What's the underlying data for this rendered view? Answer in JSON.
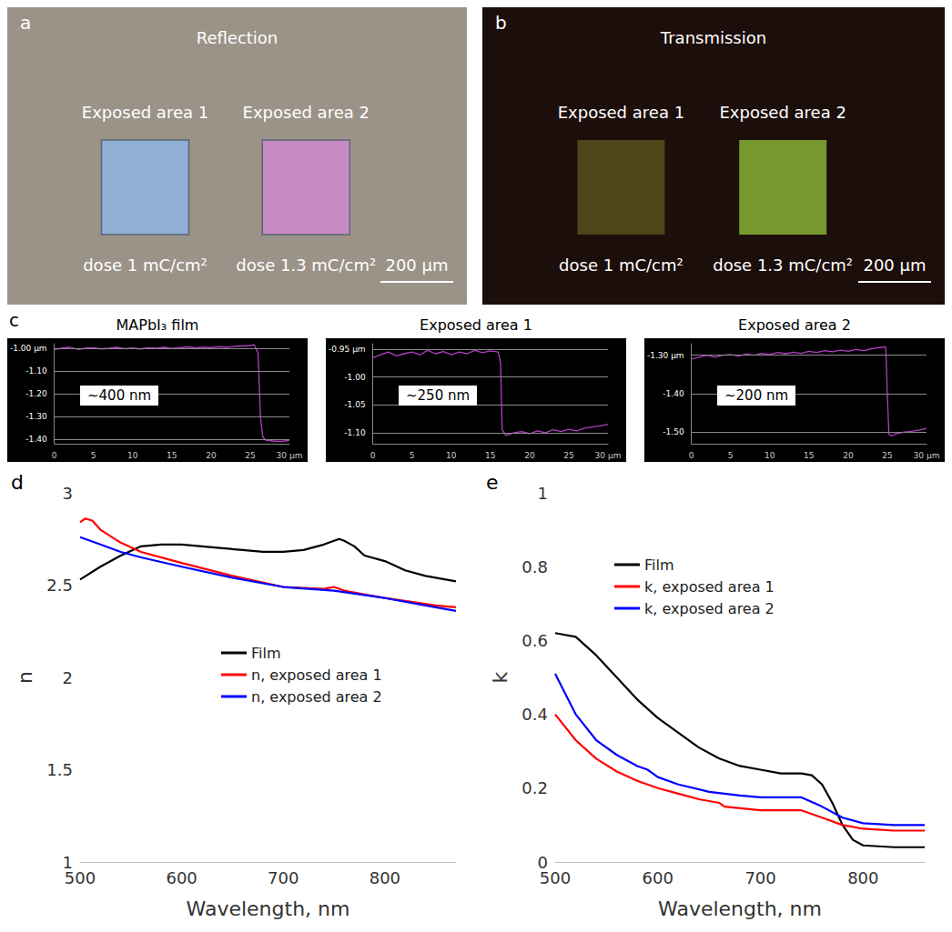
{
  "panel_a": {
    "letter": "a",
    "title": "Reflection",
    "scale_bar": "200 μm",
    "areas": [
      {
        "label": "Exposed area 1",
        "dose": "dose 1 mC/cm²",
        "color": "#8fafd3"
      },
      {
        "label": "Exposed area 2",
        "dose": "dose 1.3 mC/cm²",
        "color": "#c58bc2"
      }
    ]
  },
  "panel_b": {
    "letter": "b",
    "title": "Transmission",
    "scale_bar": "200 μm",
    "areas": [
      {
        "label": "Exposed area 1",
        "dose": "dose 1 mC/cm²",
        "color": "#4e4519"
      },
      {
        "label": "Exposed area 2",
        "dose": "dose 1.3 mC/cm²",
        "color": "#77982f"
      }
    ]
  },
  "chart_data": [
    {
      "type": "line",
      "panel": "c",
      "title": "MAPbI₃ film",
      "annotation": "~400 nm",
      "color": "#b040c0",
      "grid": true,
      "x": [
        0,
        1,
        2,
        3,
        4,
        5,
        6,
        7,
        8,
        9,
        10,
        11,
        12,
        13,
        14,
        15,
        16,
        17,
        18,
        19,
        20,
        21,
        22,
        23,
        24,
        25,
        25.5,
        26,
        26.3,
        26.6,
        27,
        28,
        29,
        30
      ],
      "values": [
        -1.005,
        -1.0,
        -0.995,
        -1.005,
        -1.0,
        -0.998,
        -1.003,
        -1.0,
        -0.996,
        -1.002,
        -0.999,
        -1.003,
        -0.998,
        -1.0,
        -0.996,
        -1.001,
        -0.998,
        -0.994,
        -0.999,
        -0.995,
        -0.997,
        -0.993,
        -0.996,
        -0.992,
        -0.99,
        -0.988,
        -0.985,
        -1.02,
        -1.3,
        -1.39,
        -1.405,
        -1.408,
        -1.41,
        -1.405
      ],
      "xlim": [
        0,
        30
      ],
      "xticks": [
        0,
        5,
        10,
        15,
        20,
        25,
        {
          "value": 30,
          "label": "30 μm"
        }
      ],
      "ylim": [
        -1.42,
        -0.98
      ],
      "yticks": [
        {
          "value": -1.0,
          "label": "-1.00 μm"
        },
        {
          "value": -1.1,
          "label": "-1.10"
        },
        {
          "value": -1.2,
          "label": "-1.20"
        },
        {
          "value": -1.3,
          "label": "-1.30"
        },
        {
          "value": -1.4,
          "label": "-1.40"
        }
      ]
    },
    {
      "type": "line",
      "title": "Exposed area 1",
      "annotation": "~250 nm",
      "color": "#b040c0",
      "grid": true,
      "x": [
        0,
        1,
        2,
        3,
        4,
        5,
        6,
        7,
        8,
        9,
        10,
        11,
        12,
        13,
        14,
        15,
        16,
        16.3,
        16.5,
        17,
        18,
        19,
        20,
        21,
        22,
        23,
        24,
        25,
        26,
        27,
        28,
        29,
        30
      ],
      "values": [
        -0.965,
        -0.96,
        -0.955,
        -0.962,
        -0.958,
        -0.955,
        -0.96,
        -0.952,
        -0.958,
        -0.954,
        -0.96,
        -0.955,
        -0.958,
        -0.952,
        -0.956,
        -0.953,
        -0.955,
        -0.975,
        -1.095,
        -1.105,
        -1.1,
        -1.098,
        -1.102,
        -1.097,
        -1.1,
        -1.095,
        -1.098,
        -1.094,
        -1.097,
        -1.092,
        -1.09,
        -1.088,
        -1.085
      ],
      "xlim": [
        0,
        30
      ],
      "xticks": [
        0,
        5,
        10,
        15,
        20,
        25,
        {
          "value": 30,
          "label": "30 μm"
        }
      ],
      "ylim": [
        -1.12,
        -0.94
      ],
      "yticks": [
        {
          "value": -0.95,
          "label": "-0.95 μm"
        },
        {
          "value": -1.0,
          "label": "-1.00"
        },
        {
          "value": -1.05,
          "label": "-1.05"
        },
        {
          "value": -1.1,
          "label": "-1.10"
        }
      ]
    },
    {
      "type": "line",
      "title": "Exposed area 2",
      "annotation": "~200 nm",
      "color": "#b040c0",
      "grid": true,
      "x": [
        0,
        1,
        2,
        3,
        4,
        5,
        6,
        7,
        8,
        9,
        10,
        11,
        12,
        13,
        14,
        15,
        16,
        17,
        18,
        19,
        20,
        21,
        22,
        23,
        24,
        24.8,
        25,
        25.2,
        25.5,
        26,
        27,
        28,
        29,
        30
      ],
      "values": [
        -1.31,
        -1.305,
        -1.3,
        -1.305,
        -1.3,
        -1.298,
        -1.302,
        -1.297,
        -1.3,
        -1.295,
        -1.298,
        -1.293,
        -1.296,
        -1.292,
        -1.295,
        -1.29,
        -1.293,
        -1.288,
        -1.291,
        -1.287,
        -1.29,
        -1.285,
        -1.288,
        -1.283,
        -1.28,
        -1.278,
        -1.4,
        -1.505,
        -1.51,
        -1.505,
        -1.5,
        -1.498,
        -1.495,
        -1.49
      ],
      "xlim": [
        0,
        30
      ],
      "xticks": [
        0,
        5,
        10,
        15,
        20,
        25,
        {
          "value": 30,
          "label": "30 μm"
        }
      ],
      "ylim": [
        -1.53,
        -1.27
      ],
      "yticks": [
        {
          "value": -1.3,
          "label": "-1.30 μm"
        },
        {
          "value": -1.4,
          "label": "-1.40"
        },
        {
          "value": -1.5,
          "label": "-1.50"
        }
      ]
    },
    {
      "type": "line",
      "panel": "d",
      "x_label": "Wavelength, nm",
      "y_label": "n",
      "legend": "center",
      "grid": false,
      "xlim": [
        500,
        870
      ],
      "xticks": [
        500,
        600,
        700,
        800
      ],
      "ylim": [
        1,
        3
      ],
      "yticks": [
        1,
        1.5,
        2,
        2.5,
        3
      ],
      "series": [
        {
          "name": "Film",
          "color": "#000000",
          "x": [
            500,
            520,
            540,
            560,
            580,
            600,
            620,
            640,
            660,
            680,
            700,
            720,
            740,
            755,
            760,
            770,
            780,
            800,
            820,
            840,
            860,
            870
          ],
          "values": [
            2.53,
            2.6,
            2.66,
            2.71,
            2.72,
            2.72,
            2.71,
            2.7,
            2.69,
            2.68,
            2.68,
            2.69,
            2.72,
            2.75,
            2.74,
            2.71,
            2.66,
            2.63,
            2.58,
            2.55,
            2.53,
            2.52
          ]
        },
        {
          "name": "n, exposed area 1",
          "color": "#ff0000",
          "x": [
            500,
            505,
            512,
            520,
            540,
            560,
            600,
            650,
            700,
            740,
            750,
            760,
            800,
            850,
            870
          ],
          "values": [
            2.84,
            2.86,
            2.85,
            2.8,
            2.73,
            2.68,
            2.62,
            2.55,
            2.49,
            2.48,
            2.49,
            2.47,
            2.43,
            2.39,
            2.38
          ]
        },
        {
          "name": "n, exposed area 2",
          "color": "#0000ff",
          "x": [
            500,
            520,
            540,
            560,
            600,
            650,
            700,
            750,
            800,
            850,
            870
          ],
          "values": [
            2.76,
            2.72,
            2.68,
            2.65,
            2.6,
            2.54,
            2.49,
            2.47,
            2.43,
            2.38,
            2.36
          ]
        }
      ]
    },
    {
      "type": "line",
      "panel": "e",
      "x_label": "Wavelength, nm",
      "y_label": "k",
      "legend": "top",
      "grid": false,
      "xlim": [
        500,
        860
      ],
      "xticks": [
        500,
        600,
        700,
        800
      ],
      "ylim": [
        0,
        1
      ],
      "yticks": [
        0,
        0.2,
        0.4,
        0.6,
        0.8,
        1
      ],
      "series": [
        {
          "name": "Film",
          "color": "#000000",
          "x": [
            500,
            520,
            540,
            560,
            580,
            600,
            620,
            640,
            660,
            680,
            700,
            720,
            740,
            750,
            760,
            770,
            780,
            790,
            800,
            830,
            860
          ],
          "values": [
            0.62,
            0.61,
            0.56,
            0.5,
            0.44,
            0.39,
            0.35,
            0.31,
            0.28,
            0.26,
            0.25,
            0.24,
            0.24,
            0.235,
            0.21,
            0.16,
            0.1,
            0.06,
            0.045,
            0.04,
            0.04
          ]
        },
        {
          "name": "k, exposed area 1",
          "color": "#ff0000",
          "x": [
            500,
            520,
            540,
            560,
            580,
            600,
            620,
            640,
            660,
            665,
            700,
            740,
            760,
            780,
            800,
            830,
            860
          ],
          "values": [
            0.4,
            0.33,
            0.28,
            0.245,
            0.22,
            0.2,
            0.185,
            0.17,
            0.16,
            0.15,
            0.14,
            0.14,
            0.12,
            0.1,
            0.09,
            0.085,
            0.085
          ]
        },
        {
          "name": "k, exposed area 2",
          "color": "#0000ff",
          "x": [
            500,
            520,
            540,
            560,
            580,
            590,
            600,
            620,
            650,
            680,
            700,
            740,
            760,
            780,
            800,
            830,
            860
          ],
          "values": [
            0.51,
            0.4,
            0.33,
            0.29,
            0.26,
            0.25,
            0.23,
            0.21,
            0.19,
            0.18,
            0.175,
            0.175,
            0.15,
            0.12,
            0.105,
            0.1,
            0.1
          ]
        }
      ]
    }
  ]
}
